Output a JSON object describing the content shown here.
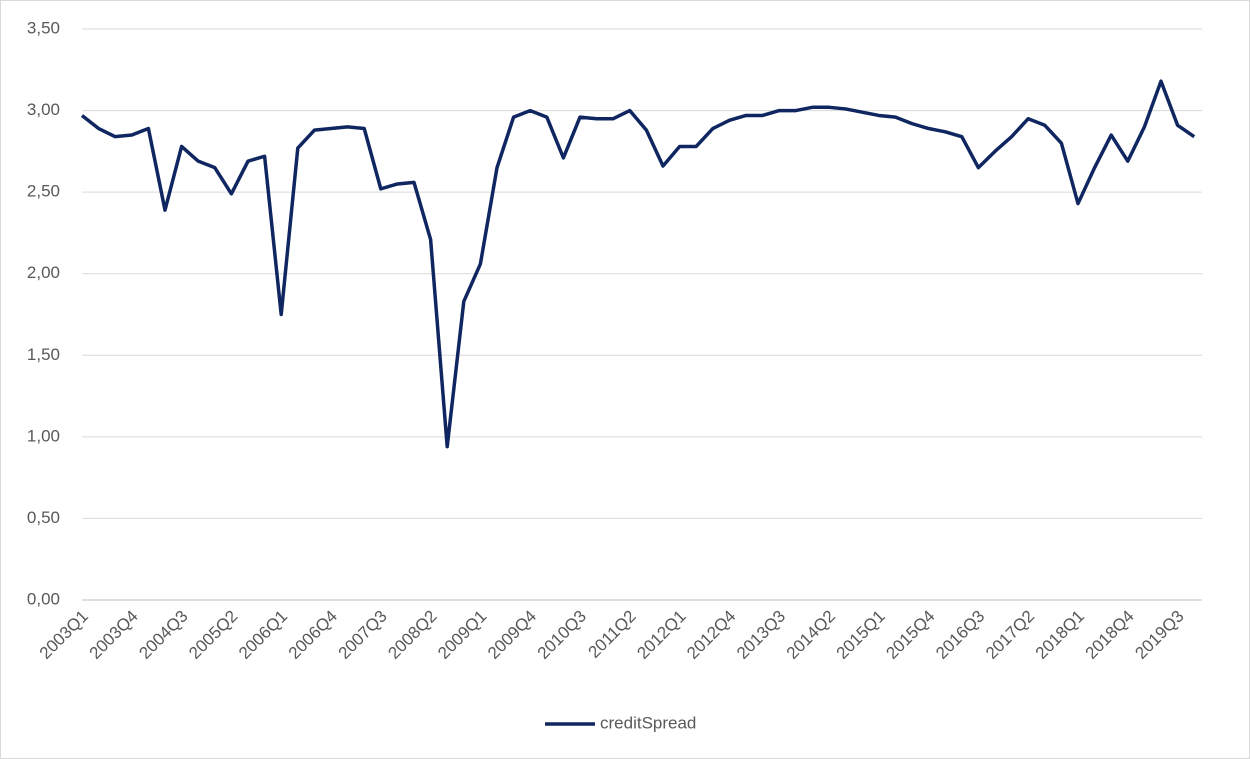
{
  "chart_data": {
    "type": "line",
    "categories": [
      "2003Q1",
      null,
      null,
      "2003Q4",
      null,
      null,
      "2004Q3",
      null,
      null,
      "2005Q2",
      null,
      null,
      "2006Q1",
      null,
      null,
      "2006Q4",
      null,
      null,
      "2007Q3",
      null,
      null,
      "2008Q2",
      null,
      null,
      "2009Q1",
      null,
      null,
      "2009Q4",
      null,
      null,
      "2010Q3",
      null,
      null,
      "2011Q2",
      null,
      null,
      "2012Q1",
      null,
      null,
      "2012Q4",
      null,
      null,
      "2013Q3",
      null,
      null,
      "2014Q2",
      null,
      null,
      "2015Q1",
      null,
      null,
      "2015Q4",
      null,
      null,
      "2016Q3",
      null,
      null,
      "2017Q2",
      null,
      null,
      "2018Q1",
      null,
      null,
      "2018Q4",
      null,
      null,
      "2019Q3",
      null
    ],
    "series": [
      {
        "name": "creditSpread",
        "color": "#0f2660",
        "values": [
          2.97,
          2.89,
          2.84,
          2.85,
          2.89,
          2.39,
          2.78,
          2.69,
          2.65,
          2.49,
          2.69,
          2.72,
          1.75,
          2.77,
          2.88,
          2.89,
          2.9,
          2.89,
          2.52,
          2.55,
          2.56,
          2.21,
          0.94,
          1.83,
          2.06,
          2.65,
          2.96,
          3.0,
          2.96,
          2.71,
          2.96,
          2.95,
          2.95,
          3.0,
          2.88,
          2.66,
          2.78,
          2.78,
          2.89,
          2.94,
          2.97,
          2.97,
          3.0,
          3.0,
          3.02,
          3.02,
          3.01,
          2.99,
          2.97,
          2.96,
          2.92,
          2.89,
          2.87,
          2.84,
          2.65,
          2.75,
          2.84,
          2.95,
          2.91,
          2.8,
          2.43,
          2.65,
          2.85,
          2.69,
          2.9,
          3.18,
          2.91,
          2.84
        ]
      }
    ],
    "ylim": [
      0,
      3.5
    ],
    "yticks": [
      {
        "value": 0,
        "label": "0,00"
      },
      {
        "value": 0.5,
        "label": "0,50"
      },
      {
        "value": 1,
        "label": "1,00"
      },
      {
        "value": 1.5,
        "label": "1,50"
      },
      {
        "value": 2,
        "label": "2,00"
      },
      {
        "value": 2.5,
        "label": "2,50"
      },
      {
        "value": 3,
        "label": "3,00"
      },
      {
        "value": 3.5,
        "label": "3,50"
      }
    ],
    "grid": true,
    "legend": "bottom"
  }
}
